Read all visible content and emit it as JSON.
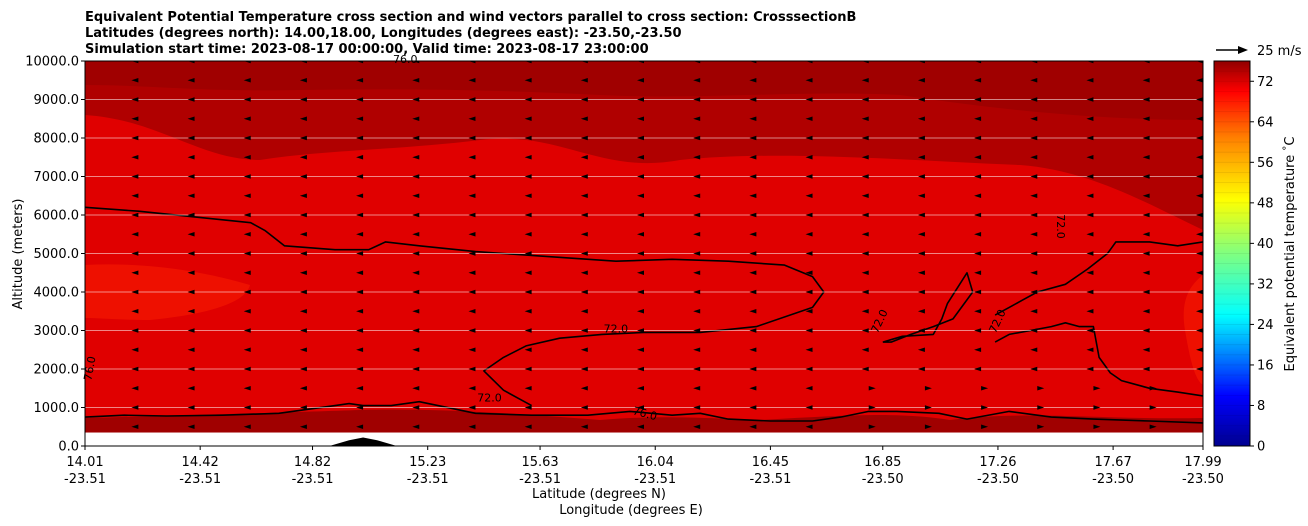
{
  "chart_data": {
    "type": "heatmap",
    "title": [
      "Equivalent Potential Temperature cross section and wind vectors parallel to cross section: CrosssectionB",
      "Latitudes (degrees north): 14.00,18.00, Longitudes (degrees east): -23.50,-23.50",
      "Simulation start time: 2023-08-17 00:00:00, Valid time: 2023-08-17 23:00:00"
    ],
    "ylabel": "Altitude (meters)",
    "xlabel": "Latitude (degrees N)",
    "xlabel2": "Longitude (degrees E)",
    "ylim": [
      0,
      10000
    ],
    "yticks": [
      "0.0",
      "1000.0",
      "2000.0",
      "3000.0",
      "4000.0",
      "5000.0",
      "6000.0",
      "7000.0",
      "8000.0",
      "9000.0",
      "10000.0"
    ],
    "yticks_values": [
      0,
      1000,
      2000,
      3000,
      4000,
      5000,
      6000,
      7000,
      8000,
      9000,
      10000
    ],
    "xlim": [
      14.01,
      17.99
    ],
    "xticks_lat": [
      "14.01",
      "14.42",
      "14.82",
      "15.23",
      "15.63",
      "16.04",
      "16.45",
      "16.85",
      "17.26",
      "17.67",
      "17.99"
    ],
    "xticks_lon": [
      "-23.51",
      "-23.51",
      "-23.51",
      "-23.51",
      "-23.51",
      "-23.51",
      "-23.51",
      "-23.50",
      "-23.50",
      "-23.50",
      "-23.50"
    ],
    "xticks_values": [
      14.01,
      14.42,
      14.82,
      15.23,
      15.63,
      16.04,
      16.45,
      16.85,
      17.26,
      17.67,
      17.99
    ],
    "colorbar": {
      "label": "Equivalent potential temperature $^\\circ$C",
      "vmin": 0,
      "vmax": 76,
      "ticks": [
        "0",
        "8",
        "16",
        "24",
        "32",
        "40",
        "48",
        "56",
        "64",
        "72"
      ],
      "tick_values": [
        0,
        8,
        16,
        24,
        32,
        40,
        48,
        56,
        64,
        72
      ]
    },
    "wind_key": {
      "label": "25 m/s"
    },
    "contour_labels": [
      {
        "text": "72.0",
        "lat": 15.9,
        "alt": 2950,
        "rot": 0
      },
      {
        "text": "72.0",
        "lat": 15.45,
        "alt": 1150,
        "rot": 0
      },
      {
        "text": "76.0",
        "lat": 16.0,
        "alt": 750,
        "rot": 15
      },
      {
        "text": "72.0",
        "lat": 16.85,
        "alt": 3200,
        "rot": -65
      },
      {
        "text": "72.0",
        "lat": 17.27,
        "alt": 3200,
        "rot": -65
      },
      {
        "text": "72.0",
        "lat": 17.47,
        "alt": 5700,
        "rot": 90
      },
      {
        "text": "76.0",
        "lat": 15.15,
        "alt": 9950,
        "rot": 0
      },
      {
        "text": "76.0",
        "lat": 14.04,
        "alt": 2000,
        "rot": -80
      }
    ],
    "contour_72_upper_lat": [
      14.01,
      14.2,
      14.4,
      14.6,
      14.65,
      14.72,
      14.9,
      15.02,
      15.08,
      15.2,
      15.4,
      15.6,
      15.9,
      16.1,
      16.3,
      16.5,
      16.6,
      16.64,
      16.6,
      16.4,
      16.2,
      16.0,
      15.85,
      15.7,
      15.58,
      15.5,
      15.43,
      15.5,
      15.55,
      15.6
    ],
    "contour_72_upper_alt": [
      6200,
      6100,
      5950,
      5800,
      5600,
      5200,
      5100,
      5100,
      5300,
      5200,
      5050,
      4950,
      4800,
      4850,
      4800,
      4700,
      4400,
      4000,
      3600,
      3100,
      2950,
      2950,
      2900,
      2800,
      2600,
      2300,
      1950,
      1450,
      1250,
      1050
    ],
    "contour_72_right_lat": [
      16.85,
      16.92,
      17.03,
      17.06,
      17.08,
      17.15,
      17.17,
      17.1,
      17.03,
      16.95,
      16.88,
      16.85
    ],
    "contour_72_right_alt": [
      2700,
      2850,
      2900,
      3300,
      3700,
      4500,
      4000,
      3300,
      3100,
      2900,
      2700,
      2700
    ],
    "contour_72_east_lat": [
      17.25,
      17.3,
      17.35,
      17.4,
      17.5,
      17.58,
      17.65,
      17.67,
      17.68,
      17.8,
      17.9,
      17.99
    ],
    "contour_72_east_alt": [
      3400,
      3600,
      3800,
      4000,
      4200,
      4600,
      5000,
      5200,
      5300,
      5300,
      5200,
      5300
    ],
    "contour_72_lower_lat": [
      17.25,
      17.3,
      17.45,
      17.5,
      17.55,
      17.6,
      17.62,
      17.66,
      17.7,
      17.8,
      17.9,
      17.99
    ],
    "contour_72_lower_alt": [
      2700,
      2900,
      3100,
      3200,
      3100,
      3100,
      2300,
      1900,
      1700,
      1500,
      1400,
      1300
    ],
    "contour_76_low_lat": [
      14.01,
      14.15,
      14.3,
      14.5,
      14.7,
      14.8,
      14.9,
      14.95,
      15.0,
      15.1,
      15.2,
      15.4,
      15.6,
      15.8,
      15.95,
      16.1,
      16.2,
      16.3,
      16.45,
      16.6,
      16.7,
      16.8,
      16.9,
      17.05,
      17.15,
      17.3,
      17.45,
      17.6,
      17.8,
      17.99
    ],
    "contour_76_low_alt": [
      750,
      800,
      780,
      800,
      850,
      950,
      1050,
      1100,
      1050,
      1050,
      1150,
      850,
      800,
      800,
      900,
      800,
      850,
      700,
      650,
      650,
      750,
      900,
      900,
      850,
      700,
      900,
      750,
      700,
      650,
      600
    ],
    "terrain_lat": [
      14.88,
      14.95,
      15.0,
      15.05,
      15.12
    ],
    "terrain_alt": [
      0,
      150,
      220,
      150,
      0
    ],
    "wind_rows_alt": [
      500,
      1000,
      1500,
      2000,
      2500,
      3000,
      3500,
      4000,
      4500,
      5000,
      5500,
      6000,
      6500,
      7000,
      7500,
      8000,
      8500,
      9000,
      9500,
      10000
    ],
    "wind_cols_lat": [
      14.01,
      14.2,
      14.4,
      14.6,
      14.8,
      15.0,
      15.2,
      15.4,
      15.6,
      15.8,
      16.0,
      16.2,
      16.4,
      16.6,
      16.8,
      17.0,
      17.2,
      17.4,
      17.6,
      17.8,
      17.99
    ]
  }
}
